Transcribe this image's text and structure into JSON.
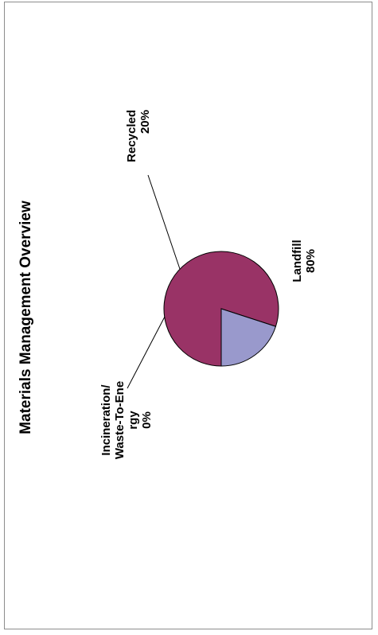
{
  "chart_data": {
    "type": "pie",
    "title": "Materials Management Overview",
    "slices": [
      {
        "label": "Landfill",
        "value": 80,
        "value_label": "80%",
        "color": "#993366"
      },
      {
        "label": "Recycled",
        "value": 20,
        "value_label": "20%",
        "color": "#9999cc"
      },
      {
        "label": "Incineration/ Waste-To-Energy",
        "label_lines": [
          "Incineration/",
          "Waste-To-Ene",
          "rgy"
        ],
        "value": 0,
        "value_label": "0%",
        "color": "#ffffff"
      }
    ],
    "legend": "none",
    "orientation": "rotated-90-ccw"
  }
}
